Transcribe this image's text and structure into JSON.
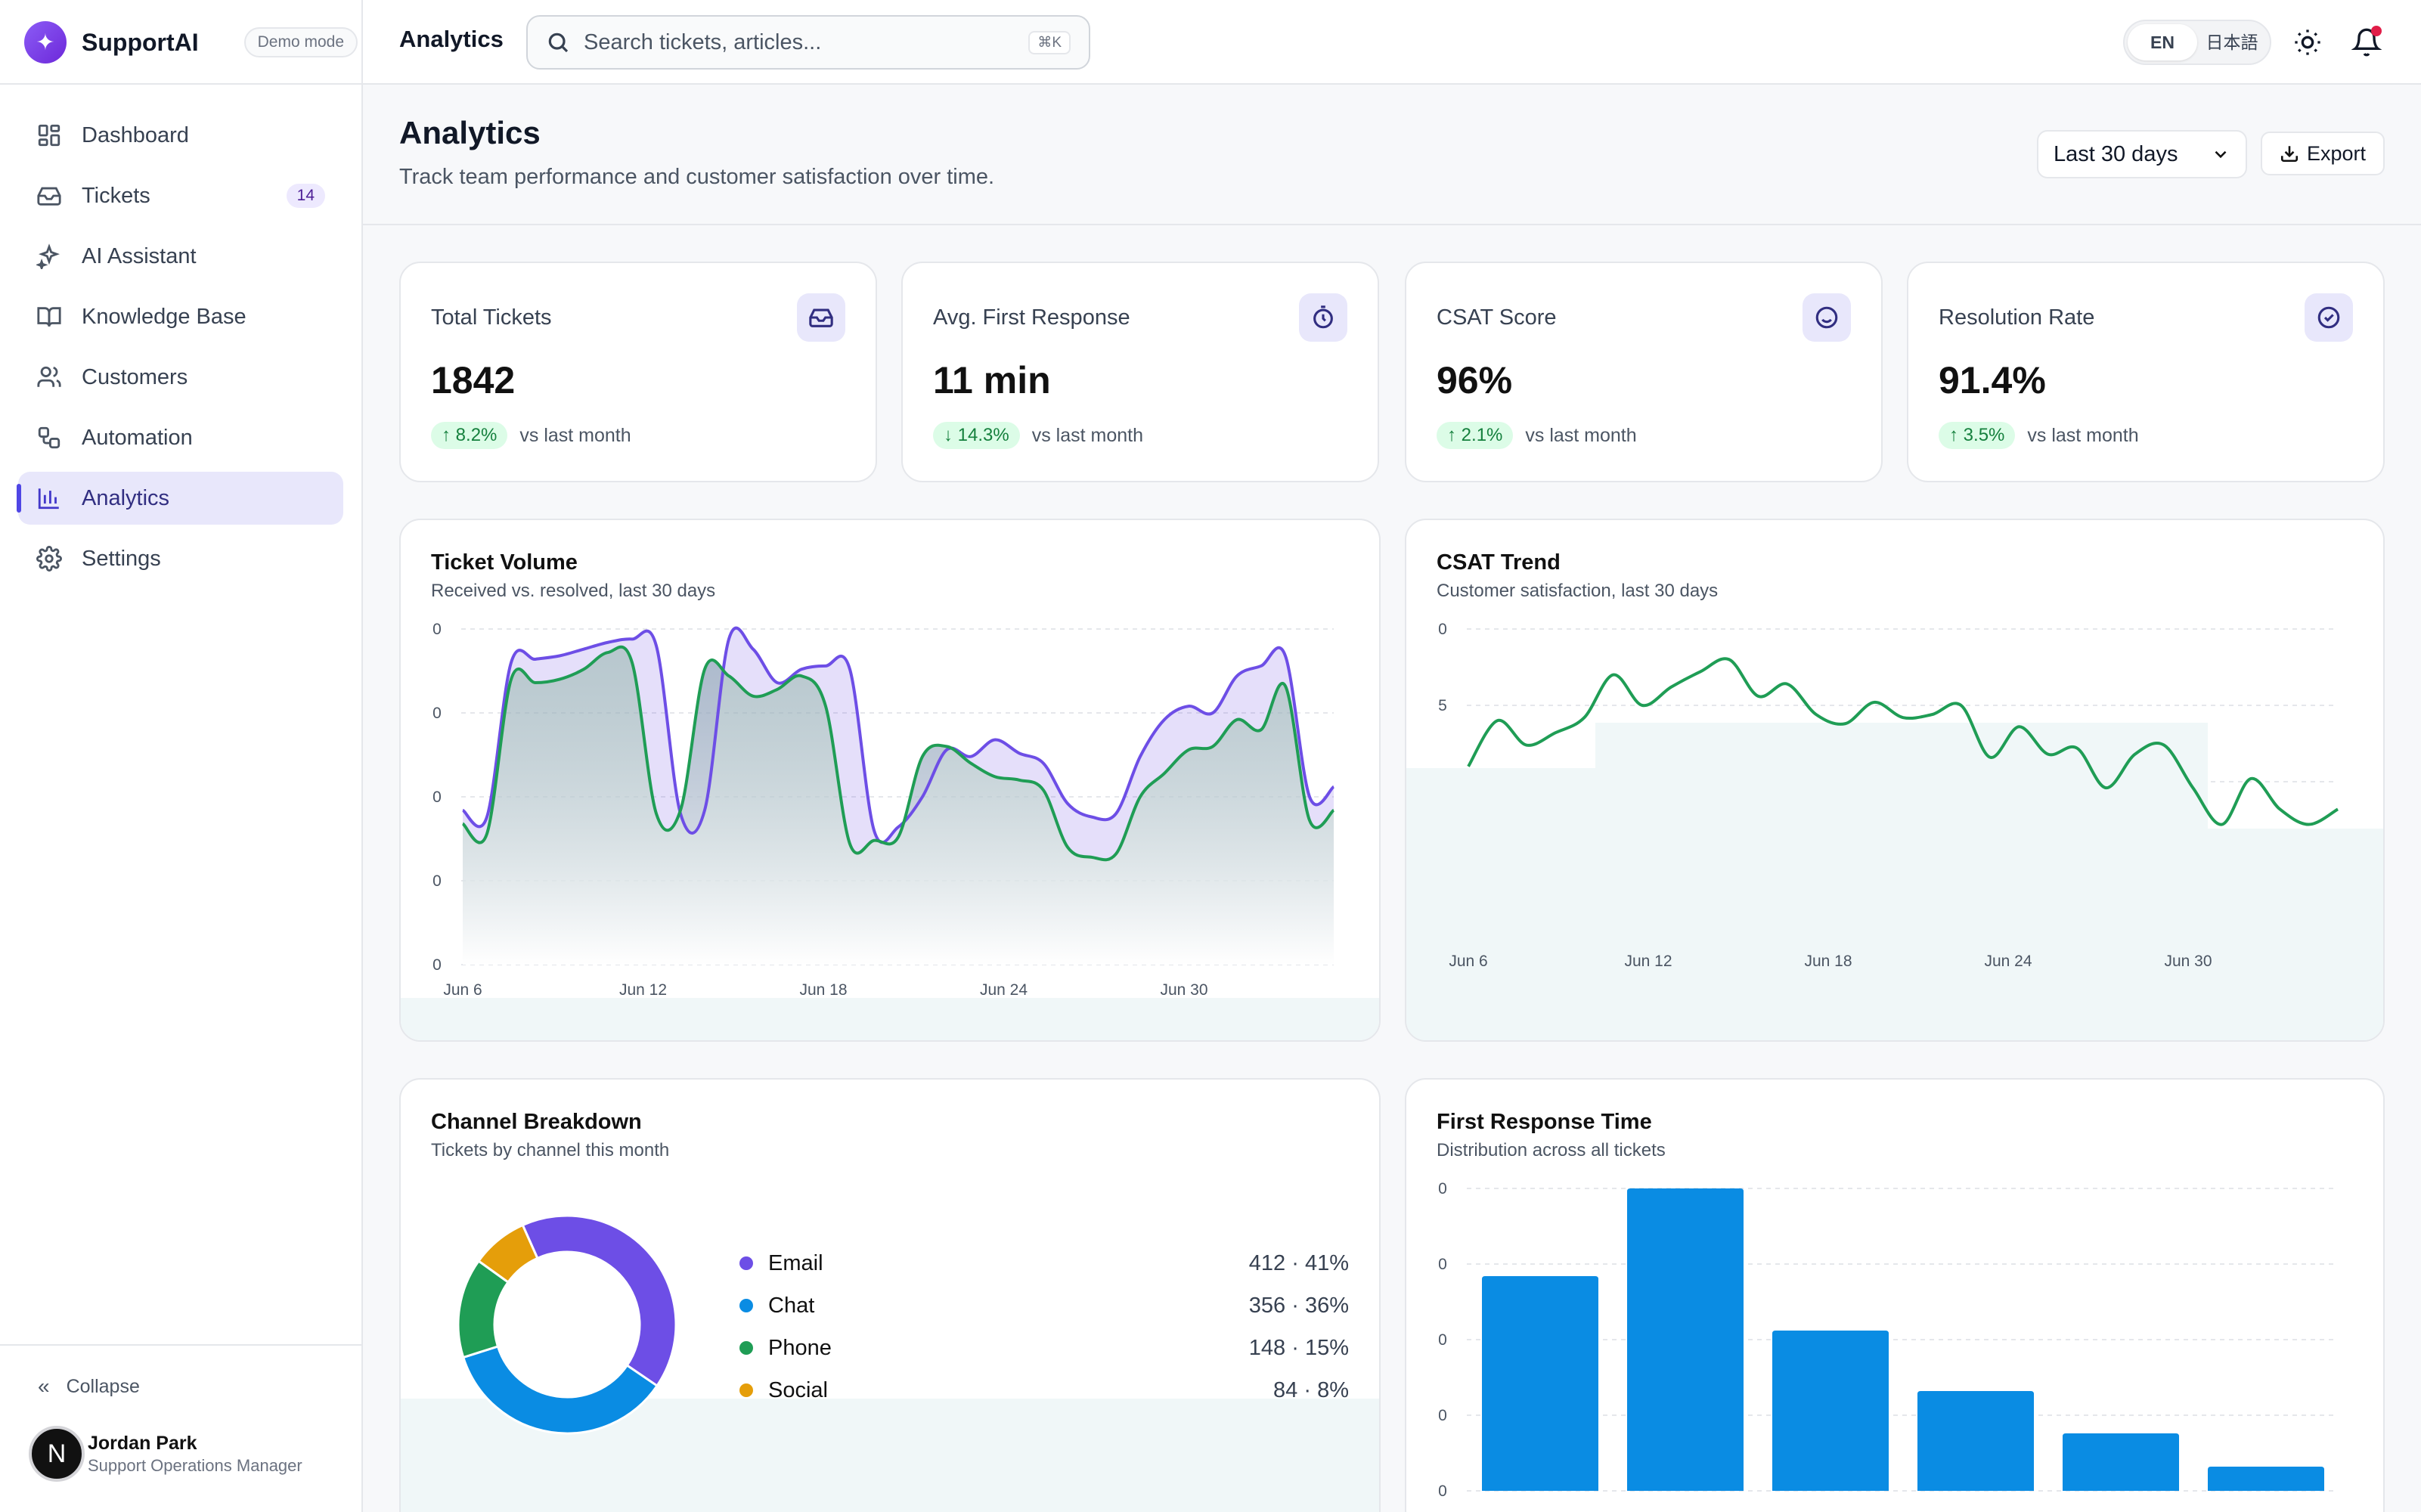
{
  "brand": {
    "name": "SupportAI",
    "logo_icon": "sparkle-icon",
    "badge": "Demo mode"
  },
  "sidebar": {
    "items": [
      {
        "label": "Dashboard",
        "icon": "dashboard-icon"
      },
      {
        "label": "Tickets",
        "icon": "inbox-icon",
        "badge": "14"
      },
      {
        "label": "AI Assistant",
        "icon": "sparkles-icon"
      },
      {
        "label": "Knowledge Base",
        "icon": "book-icon"
      },
      {
        "label": "Customers",
        "icon": "users-icon"
      },
      {
        "label": "Automation",
        "icon": "workflow-icon"
      },
      {
        "label": "Analytics",
        "icon": "bar-chart-icon",
        "active": true
      },
      {
        "label": "Settings",
        "icon": "gear-icon"
      }
    ],
    "collapse_label": "Collapse",
    "user": {
      "initial": "N",
      "name": "Jordan Park",
      "role": "Support Operations Manager"
    }
  },
  "topbar": {
    "title": "Analytics",
    "search_placeholder": "Search tickets, articles...",
    "search_shortcut": "⌘K",
    "languages": [
      "EN",
      "日本語"
    ],
    "active_language": "EN"
  },
  "page": {
    "title": "Analytics",
    "subtitle": "Track team performance and customer satisfaction over time.",
    "range": "Last 30 days",
    "export_label": "Export"
  },
  "kpis": [
    {
      "label": "Total Tickets",
      "value": "1842",
      "delta": "8.2%",
      "direction": "up",
      "compare": "vs last month",
      "icon": "inbox-icon"
    },
    {
      "label": "Avg. First Response",
      "value": "11 min",
      "delta": "14.3%",
      "direction": "down",
      "compare": "vs last month",
      "icon": "timer-icon"
    },
    {
      "label": "CSAT Score",
      "value": "96%",
      "delta": "2.1%",
      "direction": "up",
      "compare": "vs last month",
      "icon": "smile-icon"
    },
    {
      "label": "Resolution Rate",
      "value": "91.4%",
      "delta": "3.5%",
      "direction": "up",
      "compare": "vs last month",
      "icon": "check-circle-icon"
    }
  ],
  "colors": {
    "accent": "#6d4ee6",
    "green": "#1f9d55",
    "blue": "#0a8ce3",
    "amber": "#e59e0a"
  },
  "charts": {
    "volume": {
      "title": "Ticket Volume",
      "subtitle": "Received vs. resolved, last 30 days"
    },
    "csat": {
      "title": "CSAT Trend",
      "subtitle": "Customer satisfaction, last 30 days"
    },
    "channel": {
      "title": "Channel Breakdown",
      "subtitle": "Tickets by channel this month"
    },
    "frt": {
      "title": "First Response Time",
      "subtitle": "Distribution across all tickets"
    }
  },
  "chart_data": [
    {
      "type": "area",
      "title": "Ticket Volume",
      "x_ticks": [
        "Jun 6",
        "Jun 12",
        "Jun 18",
        "Jun 24",
        "Jun 30"
      ],
      "y_ticks": [
        "0",
        "0",
        "0",
        "0",
        "0"
      ],
      "ylim": [
        0,
        100
      ],
      "series": [
        {
          "color": "#6d4ee6",
          "values": [
            46,
            44,
            90,
            91,
            92,
            94,
            96,
            97,
            95,
            45,
            46,
            97,
            94,
            84,
            88,
            89,
            88,
            40,
            41,
            50,
            64,
            62,
            67,
            63,
            60,
            48,
            44,
            45,
            62,
            73,
            77,
            75,
            86,
            89,
            92,
            50,
            53
          ]
        },
        {
          "color": "#1f9d55",
          "values": [
            42,
            39,
            85,
            84,
            85,
            88,
            93,
            90,
            45,
            46,
            88,
            86,
            80,
            82,
            86,
            77,
            36,
            37,
            38,
            62,
            65,
            60,
            56,
            55,
            52,
            35,
            32,
            33,
            50,
            57,
            64,
            65,
            73,
            70,
            83,
            43,
            46
          ]
        }
      ]
    },
    {
      "type": "line",
      "title": "CSAT Trend",
      "x_ticks": [
        "Jun 6",
        "Jun 12",
        "Jun 18",
        "Jun 24",
        "Jun 30"
      ],
      "y_ticks": [
        "0",
        "5",
        "0",
        "5",
        "0"
      ],
      "ylim": [
        0,
        100
      ],
      "series": [
        {
          "color": "#1f9d55",
          "values": [
            55,
            70,
            62,
            66,
            71,
            85,
            75,
            81,
            86,
            90,
            78,
            82,
            72,
            69,
            76,
            71,
            72,
            75,
            58,
            68,
            59,
            61,
            48,
            59,
            62,
            48,
            36,
            51,
            41,
            36,
            41
          ]
        }
      ]
    },
    {
      "type": "pie",
      "title": "Channel Breakdown",
      "categories": [
        "Email",
        "Chat",
        "Phone",
        "Social"
      ],
      "values": [
        412,
        356,
        148,
        84
      ],
      "labels": [
        "412 · 41%",
        "356 · 36%",
        "148 · 15%",
        "84 · 8%"
      ],
      "colors": [
        "#6d4ee6",
        "#0a8ce3",
        "#1f9d55",
        "#e59e0a"
      ]
    },
    {
      "type": "bar",
      "title": "First Response Time",
      "values": [
        71,
        100,
        53,
        33,
        19,
        8
      ],
      "y_ticks": [
        "0",
        "0",
        "0",
        "0",
        "0"
      ],
      "ylim": [
        0,
        100
      ],
      "color": "#0a8ce3"
    }
  ]
}
